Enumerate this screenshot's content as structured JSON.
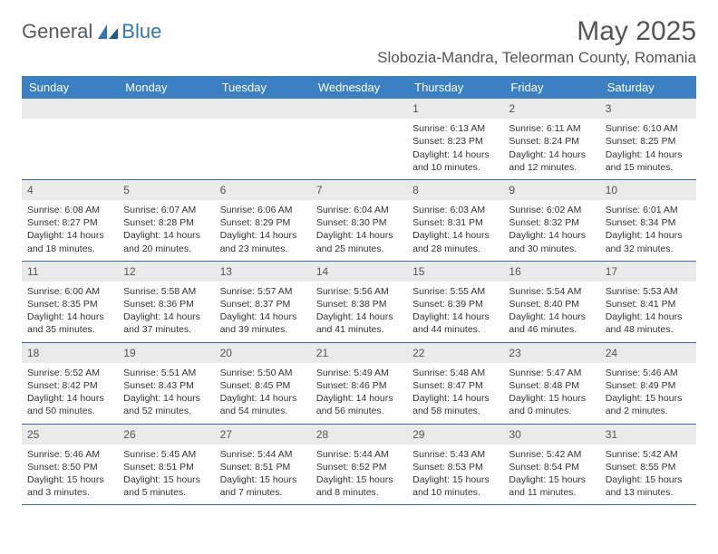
{
  "logo": {
    "text1": "General",
    "text2": "Blue"
  },
  "title": "May 2025",
  "location": "Slobozia-Mandra, Teleorman County, Romania",
  "colors": {
    "headerBlue": "#3a80c2",
    "ruleBlue": "#3a6a9a",
    "dayBarGray": "#eaeaea",
    "textGray": "#555555",
    "bodyText": "#333333",
    "logoBlue": "#2f77b5",
    "background": "#ffffff"
  },
  "dayNames": [
    "Sunday",
    "Monday",
    "Tuesday",
    "Wednesday",
    "Thursday",
    "Friday",
    "Saturday"
  ],
  "weeks": [
    [
      {
        "n": ""
      },
      {
        "n": ""
      },
      {
        "n": ""
      },
      {
        "n": ""
      },
      {
        "n": "1",
        "sr": "Sunrise: 6:13 AM",
        "ss": "Sunset: 8:23 PM",
        "dl1": "Daylight: 14 hours",
        "dl2": "and 10 minutes."
      },
      {
        "n": "2",
        "sr": "Sunrise: 6:11 AM",
        "ss": "Sunset: 8:24 PM",
        "dl1": "Daylight: 14 hours",
        "dl2": "and 12 minutes."
      },
      {
        "n": "3",
        "sr": "Sunrise: 6:10 AM",
        "ss": "Sunset: 8:25 PM",
        "dl1": "Daylight: 14 hours",
        "dl2": "and 15 minutes."
      }
    ],
    [
      {
        "n": "4",
        "sr": "Sunrise: 6:08 AM",
        "ss": "Sunset: 8:27 PM",
        "dl1": "Daylight: 14 hours",
        "dl2": "and 18 minutes."
      },
      {
        "n": "5",
        "sr": "Sunrise: 6:07 AM",
        "ss": "Sunset: 8:28 PM",
        "dl1": "Daylight: 14 hours",
        "dl2": "and 20 minutes."
      },
      {
        "n": "6",
        "sr": "Sunrise: 6:06 AM",
        "ss": "Sunset: 8:29 PM",
        "dl1": "Daylight: 14 hours",
        "dl2": "and 23 minutes."
      },
      {
        "n": "7",
        "sr": "Sunrise: 6:04 AM",
        "ss": "Sunset: 8:30 PM",
        "dl1": "Daylight: 14 hours",
        "dl2": "and 25 minutes."
      },
      {
        "n": "8",
        "sr": "Sunrise: 6:03 AM",
        "ss": "Sunset: 8:31 PM",
        "dl1": "Daylight: 14 hours",
        "dl2": "and 28 minutes."
      },
      {
        "n": "9",
        "sr": "Sunrise: 6:02 AM",
        "ss": "Sunset: 8:32 PM",
        "dl1": "Daylight: 14 hours",
        "dl2": "and 30 minutes."
      },
      {
        "n": "10",
        "sr": "Sunrise: 6:01 AM",
        "ss": "Sunset: 8:34 PM",
        "dl1": "Daylight: 14 hours",
        "dl2": "and 32 minutes."
      }
    ],
    [
      {
        "n": "11",
        "sr": "Sunrise: 6:00 AM",
        "ss": "Sunset: 8:35 PM",
        "dl1": "Daylight: 14 hours",
        "dl2": "and 35 minutes."
      },
      {
        "n": "12",
        "sr": "Sunrise: 5:58 AM",
        "ss": "Sunset: 8:36 PM",
        "dl1": "Daylight: 14 hours",
        "dl2": "and 37 minutes."
      },
      {
        "n": "13",
        "sr": "Sunrise: 5:57 AM",
        "ss": "Sunset: 8:37 PM",
        "dl1": "Daylight: 14 hours",
        "dl2": "and 39 minutes."
      },
      {
        "n": "14",
        "sr": "Sunrise: 5:56 AM",
        "ss": "Sunset: 8:38 PM",
        "dl1": "Daylight: 14 hours",
        "dl2": "and 41 minutes."
      },
      {
        "n": "15",
        "sr": "Sunrise: 5:55 AM",
        "ss": "Sunset: 8:39 PM",
        "dl1": "Daylight: 14 hours",
        "dl2": "and 44 minutes."
      },
      {
        "n": "16",
        "sr": "Sunrise: 5:54 AM",
        "ss": "Sunset: 8:40 PM",
        "dl1": "Daylight: 14 hours",
        "dl2": "and 46 minutes."
      },
      {
        "n": "17",
        "sr": "Sunrise: 5:53 AM",
        "ss": "Sunset: 8:41 PM",
        "dl1": "Daylight: 14 hours",
        "dl2": "and 48 minutes."
      }
    ],
    [
      {
        "n": "18",
        "sr": "Sunrise: 5:52 AM",
        "ss": "Sunset: 8:42 PM",
        "dl1": "Daylight: 14 hours",
        "dl2": "and 50 minutes."
      },
      {
        "n": "19",
        "sr": "Sunrise: 5:51 AM",
        "ss": "Sunset: 8:43 PM",
        "dl1": "Daylight: 14 hours",
        "dl2": "and 52 minutes."
      },
      {
        "n": "20",
        "sr": "Sunrise: 5:50 AM",
        "ss": "Sunset: 8:45 PM",
        "dl1": "Daylight: 14 hours",
        "dl2": "and 54 minutes."
      },
      {
        "n": "21",
        "sr": "Sunrise: 5:49 AM",
        "ss": "Sunset: 8:46 PM",
        "dl1": "Daylight: 14 hours",
        "dl2": "and 56 minutes."
      },
      {
        "n": "22",
        "sr": "Sunrise: 5:48 AM",
        "ss": "Sunset: 8:47 PM",
        "dl1": "Daylight: 14 hours",
        "dl2": "and 58 minutes."
      },
      {
        "n": "23",
        "sr": "Sunrise: 5:47 AM",
        "ss": "Sunset: 8:48 PM",
        "dl1": "Daylight: 15 hours",
        "dl2": "and 0 minutes."
      },
      {
        "n": "24",
        "sr": "Sunrise: 5:46 AM",
        "ss": "Sunset: 8:49 PM",
        "dl1": "Daylight: 15 hours",
        "dl2": "and 2 minutes."
      }
    ],
    [
      {
        "n": "25",
        "sr": "Sunrise: 5:46 AM",
        "ss": "Sunset: 8:50 PM",
        "dl1": "Daylight: 15 hours",
        "dl2": "and 3 minutes."
      },
      {
        "n": "26",
        "sr": "Sunrise: 5:45 AM",
        "ss": "Sunset: 8:51 PM",
        "dl1": "Daylight: 15 hours",
        "dl2": "and 5 minutes."
      },
      {
        "n": "27",
        "sr": "Sunrise: 5:44 AM",
        "ss": "Sunset: 8:51 PM",
        "dl1": "Daylight: 15 hours",
        "dl2": "and 7 minutes."
      },
      {
        "n": "28",
        "sr": "Sunrise: 5:44 AM",
        "ss": "Sunset: 8:52 PM",
        "dl1": "Daylight: 15 hours",
        "dl2": "and 8 minutes."
      },
      {
        "n": "29",
        "sr": "Sunrise: 5:43 AM",
        "ss": "Sunset: 8:53 PM",
        "dl1": "Daylight: 15 hours",
        "dl2": "and 10 minutes."
      },
      {
        "n": "30",
        "sr": "Sunrise: 5:42 AM",
        "ss": "Sunset: 8:54 PM",
        "dl1": "Daylight: 15 hours",
        "dl2": "and 11 minutes."
      },
      {
        "n": "31",
        "sr": "Sunrise: 5:42 AM",
        "ss": "Sunset: 8:55 PM",
        "dl1": "Daylight: 15 hours",
        "dl2": "and 13 minutes."
      }
    ]
  ]
}
